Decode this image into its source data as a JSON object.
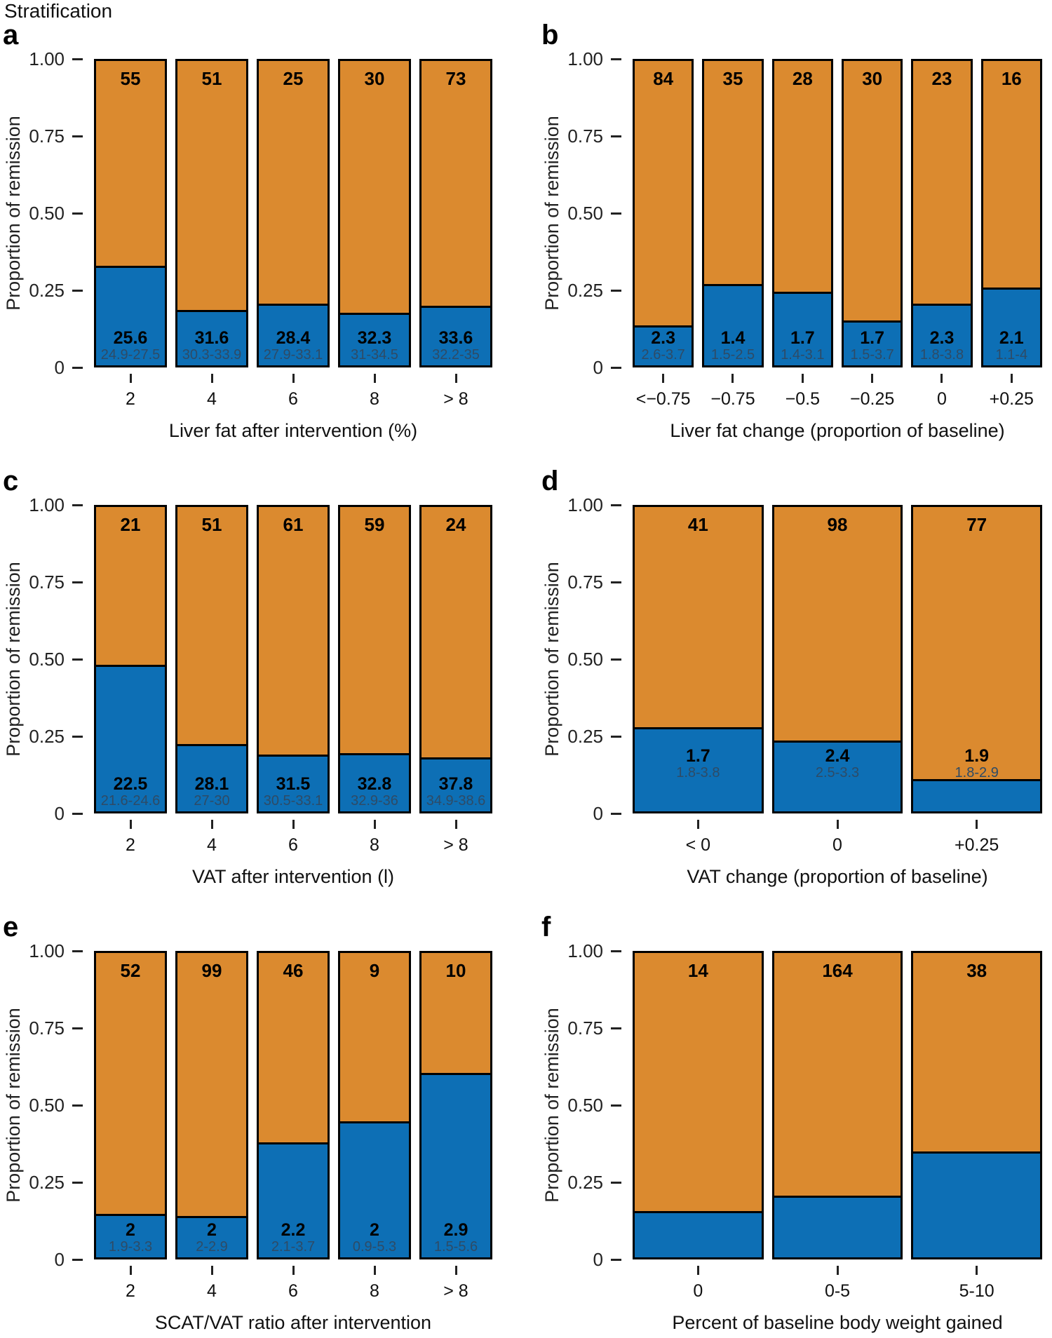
{
  "title": "Stratification",
  "colors": {
    "remission_blue": "#0D6FB5",
    "non_remission_orange": "#DB8A2F",
    "bar_border": "#000000",
    "ci_text": "#2E4B66",
    "axis_text": "#1A1A1A"
  },
  "y_axis": {
    "label": "Proportion of remission",
    "ticks": [
      "1.00",
      "0.75",
      "0.50",
      "0.25",
      "0"
    ],
    "range": [
      0,
      1
    ]
  },
  "chart_data": [
    {
      "panel": "a",
      "type": "bar",
      "stacked": true,
      "x_title": "Liver fat after intervention (%)",
      "y_title": "Proportion of remission",
      "y_ticks": [
        "1.00",
        "0.75",
        "0.50",
        "0.25",
        "0"
      ],
      "ylim": [
        0,
        1
      ],
      "value_labels_raised": false,
      "categories": [
        "2",
        "4",
        "6",
        "8",
        "> 8"
      ],
      "bars": [
        {
          "category": "2",
          "n": "55",
          "value": "25.6",
          "range": "24.9-27.5",
          "remission_proportion": 0.32
        },
        {
          "category": "4",
          "n": "51",
          "value": "31.6",
          "range": "30.3-33.9",
          "remission_proportion": 0.175
        },
        {
          "category": "6",
          "n": "25",
          "value": "28.4",
          "range": "27.9-33.1",
          "remission_proportion": 0.195
        },
        {
          "category": "8",
          "n": "30",
          "value": "32.3",
          "range": "31-34.5",
          "remission_proportion": 0.165
        },
        {
          "category": "> 8",
          "n": "73",
          "value": "33.6",
          "range": "32.2-35",
          "remission_proportion": 0.19
        }
      ]
    },
    {
      "panel": "b",
      "type": "bar",
      "stacked": true,
      "x_title": "Liver fat change (proportion of baseline)",
      "y_title": "Proportion of remission",
      "y_ticks": [
        "1.00",
        "0.75",
        "0.50",
        "0.25",
        "0"
      ],
      "ylim": [
        0,
        1
      ],
      "value_labels_raised": false,
      "categories": [
        "<−0.75",
        "−0.75",
        "−0.5",
        "−0.25",
        "0",
        "+0.25"
      ],
      "bars": [
        {
          "category": "<−0.75",
          "n": "84",
          "value": "2.3",
          "range": "2.6-3.7",
          "remission_proportion": 0.125
        },
        {
          "category": "−0.75",
          "n": "35",
          "value": "1.4",
          "range": "1.5-2.5",
          "remission_proportion": 0.26
        },
        {
          "category": "−0.5",
          "n": "28",
          "value": "1.7",
          "range": "1.4-3.1",
          "remission_proportion": 0.235
        },
        {
          "category": "−0.25",
          "n": "30",
          "value": "1.7",
          "range": "1.5-3.7",
          "remission_proportion": 0.14
        },
        {
          "category": "0",
          "n": "23",
          "value": "2.3",
          "range": "1.8-3.8",
          "remission_proportion": 0.195
        },
        {
          "category": "+0.25",
          "n": "16",
          "value": "2.1",
          "range": "1.1-4",
          "remission_proportion": 0.25
        }
      ]
    },
    {
      "panel": "c",
      "type": "bar",
      "stacked": true,
      "x_title": "VAT after intervention (l)",
      "y_title": "Proportion of remission",
      "y_ticks": [
        "1.00",
        "0.75",
        "0.50",
        "0.25",
        "0"
      ],
      "ylim": [
        0,
        1
      ],
      "value_labels_raised": false,
      "categories": [
        "2",
        "4",
        "6",
        "8",
        "> 8"
      ],
      "bars": [
        {
          "category": "2",
          "n": "21",
          "value": "22.5",
          "range": "21.6-24.6",
          "remission_proportion": 0.475
        },
        {
          "category": "4",
          "n": "51",
          "value": "28.1",
          "range": "27-30",
          "remission_proportion": 0.215
        },
        {
          "category": "6",
          "n": "61",
          "value": "31.5",
          "range": "30.5-33.1",
          "remission_proportion": 0.18
        },
        {
          "category": "8",
          "n": "59",
          "value": "32.8",
          "range": "32.9-36",
          "remission_proportion": 0.185
        },
        {
          "category": "> 8",
          "n": "24",
          "value": "37.8",
          "range": "34.9-38.6",
          "remission_proportion": 0.17
        }
      ]
    },
    {
      "panel": "d",
      "type": "bar",
      "stacked": true,
      "x_title": "VAT change (proportion of baseline)",
      "y_title": "Proportion of remission",
      "y_ticks": [
        "1.00",
        "0.75",
        "0.50",
        "0.25",
        "0"
      ],
      "ylim": [
        0,
        1
      ],
      "value_labels_raised": true,
      "categories": [
        "< 0",
        "0",
        "+0.25"
      ],
      "bars": [
        {
          "category": "< 0",
          "n": "41",
          "value": "1.7",
          "range": "1.8-3.8",
          "remission_proportion": 0.27
        },
        {
          "category": "0",
          "n": "98",
          "value": "2.4",
          "range": "2.5-3.3",
          "remission_proportion": 0.225
        },
        {
          "category": "+0.25",
          "n": "77",
          "value": "1.9",
          "range": "1.8-2.9",
          "remission_proportion": 0.1
        }
      ]
    },
    {
      "panel": "e",
      "type": "bar",
      "stacked": true,
      "x_title": "SCAT/VAT ratio after intervention",
      "y_title": "Proportion of remission",
      "y_ticks": [
        "1.00",
        "0.75",
        "0.50",
        "0.25",
        "0"
      ],
      "ylim": [
        0,
        1
      ],
      "value_labels_raised": false,
      "categories": [
        "2",
        "4",
        "6",
        "8",
        "> 8"
      ],
      "bars": [
        {
          "category": "2",
          "n": "52",
          "value": "2",
          "range": "1.9-3.3",
          "remission_proportion": 0.135
        },
        {
          "category": "4",
          "n": "99",
          "value": "2",
          "range": "2-2.9",
          "remission_proportion": 0.13
        },
        {
          "category": "6",
          "n": "46",
          "value": "2.2",
          "range": "2.1-3.7",
          "remission_proportion": 0.37
        },
        {
          "category": "8",
          "n": "9",
          "value": "2",
          "range": "0.9-5.3",
          "remission_proportion": 0.44
        },
        {
          "category": "> 8",
          "n": "10",
          "value": "2.9",
          "range": "1.5-5.6",
          "remission_proportion": 0.6
        }
      ]
    },
    {
      "panel": "f",
      "type": "bar",
      "stacked": true,
      "x_title": "Percent of baseline body weight gained",
      "y_title": "Proportion of remission",
      "y_ticks": [
        "1.00",
        "0.75",
        "0.50",
        "0.25",
        "0"
      ],
      "ylim": [
        0,
        1
      ],
      "value_labels_raised": false,
      "categories": [
        "0",
        "0-5",
        "5-10"
      ],
      "bars": [
        {
          "category": "0",
          "n": "14",
          "remission_proportion": 0.145
        },
        {
          "category": "0-5",
          "n": "164",
          "remission_proportion": 0.195
        },
        {
          "category": "5-10",
          "n": "38",
          "remission_proportion": 0.34
        }
      ]
    }
  ]
}
